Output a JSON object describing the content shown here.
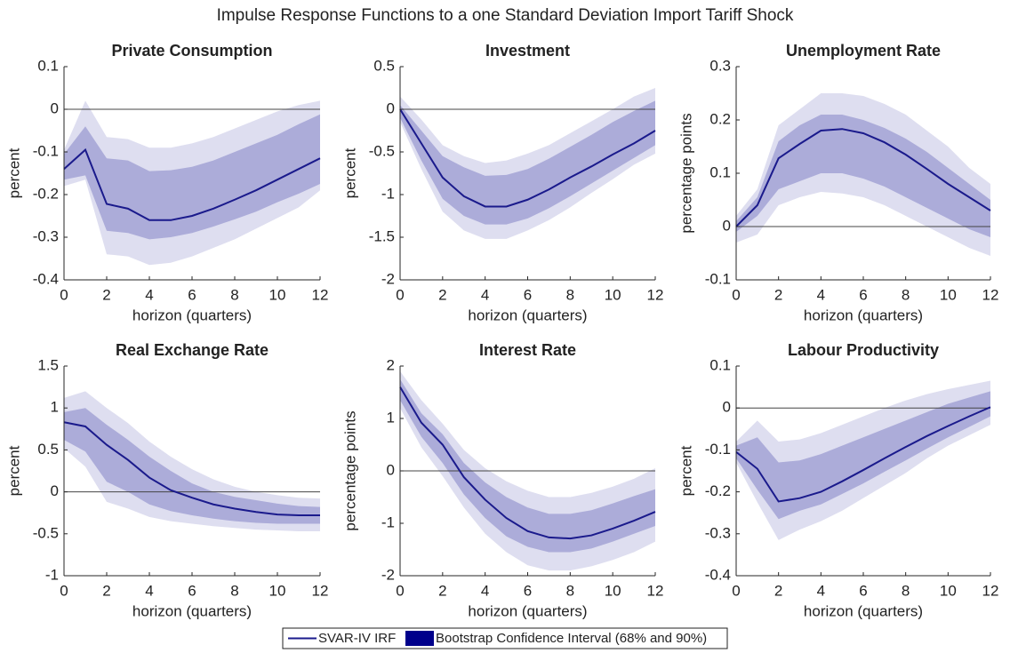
{
  "title": "Impulse Response Functions to a one Standard Deviation Import Tariff Shock",
  "legend": [
    {
      "name": "SVAR-IV IRF",
      "color": "#1a1a8c"
    },
    {
      "name": "Bootstrap Confidence Interval (68% and 90%)",
      "color": "#00008b"
    }
  ],
  "chart_data": [
    {
      "type": "line",
      "title": "Private Consumption",
      "ylabel": "percent",
      "xlabel": "horizon (quarters)",
      "x": [
        0,
        1,
        2,
        3,
        4,
        5,
        6,
        7,
        8,
        9,
        10,
        11,
        12
      ],
      "xlim": [
        0,
        12
      ],
      "xticks": [
        0,
        2,
        4,
        6,
        8,
        10,
        12
      ],
      "ylim": [
        -0.4,
        0.1
      ],
      "yticks": [
        -0.4,
        -0.3,
        -0.2,
        -0.1,
        0,
        0.1
      ],
      "hline": 0,
      "line_color": "#1a1a8c",
      "band68_color": "#acacd9",
      "band90_color": "#dedef0",
      "values": [
        -0.14,
        -0.095,
        -0.222,
        -0.233,
        -0.26,
        -0.26,
        -0.25,
        -0.233,
        -0.212,
        -0.19,
        -0.165,
        -0.14,
        -0.115
      ],
      "band68": {
        "lower": [
          -0.165,
          -0.155,
          -0.285,
          -0.29,
          -0.305,
          -0.3,
          -0.29,
          -0.275,
          -0.258,
          -0.24,
          -0.218,
          -0.198,
          -0.175
        ],
        "upper": [
          -0.105,
          -0.04,
          -0.115,
          -0.12,
          -0.145,
          -0.143,
          -0.135,
          -0.12,
          -0.1,
          -0.08,
          -0.06,
          -0.035,
          -0.012
        ]
      },
      "band90": {
        "lower": [
          -0.18,
          -0.165,
          -0.34,
          -0.345,
          -0.365,
          -0.36,
          -0.345,
          -0.325,
          -0.305,
          -0.28,
          -0.255,
          -0.23,
          -0.19
        ],
        "upper": [
          -0.095,
          0.02,
          -0.065,
          -0.07,
          -0.09,
          -0.09,
          -0.08,
          -0.065,
          -0.045,
          -0.025,
          -0.005,
          0.01,
          0.02
        ]
      }
    },
    {
      "type": "line",
      "title": "Investment",
      "ylabel": "percent",
      "xlabel": "horizon (quarters)",
      "x": [
        0,
        1,
        2,
        3,
        4,
        5,
        6,
        7,
        8,
        9,
        10,
        11,
        12
      ],
      "xlim": [
        0,
        12
      ],
      "xticks": [
        0,
        2,
        4,
        6,
        8,
        10,
        12
      ],
      "ylim": [
        -2,
        0.5
      ],
      "yticks": [
        -2,
        -1.5,
        -1,
        -0.5,
        0,
        0.5
      ],
      "hline": 0,
      "line_color": "#1a1a8c",
      "band68_color": "#acacd9",
      "band90_color": "#dedef0",
      "values": [
        0,
        -0.4,
        -0.8,
        -1.02,
        -1.14,
        -1.14,
        -1.06,
        -0.94,
        -0.8,
        -0.67,
        -0.53,
        -0.4,
        -0.25
      ],
      "band68": {
        "lower": [
          -0.1,
          -0.6,
          -1.05,
          -1.25,
          -1.35,
          -1.35,
          -1.28,
          -1.16,
          -1.02,
          -0.87,
          -0.72,
          -0.57,
          -0.42
        ],
        "upper": [
          0.05,
          -0.25,
          -0.55,
          -0.68,
          -0.78,
          -0.77,
          -0.7,
          -0.58,
          -0.44,
          -0.3,
          -0.15,
          -0.02,
          0.1
        ]
      },
      "band90": {
        "lower": [
          -0.15,
          -0.7,
          -1.2,
          -1.42,
          -1.52,
          -1.52,
          -1.42,
          -1.3,
          -1.15,
          -0.98,
          -0.82,
          -0.65,
          -0.52
        ],
        "upper": [
          0.15,
          -0.12,
          -0.42,
          -0.55,
          -0.63,
          -0.6,
          -0.52,
          -0.42,
          -0.28,
          -0.14,
          0,
          0.15,
          0.25
        ]
      }
    },
    {
      "type": "line",
      "title": "Unemployment Rate",
      "ylabel": "percentage points",
      "xlabel": "horizon (quarters)",
      "x": [
        0,
        1,
        2,
        3,
        4,
        5,
        6,
        7,
        8,
        9,
        10,
        11,
        12
      ],
      "xlim": [
        0,
        12
      ],
      "xticks": [
        0,
        2,
        4,
        6,
        8,
        10,
        12
      ],
      "ylim": [
        -0.1,
        0.3
      ],
      "yticks": [
        -0.1,
        0,
        0.1,
        0.2,
        0.3
      ],
      "hline": 0,
      "line_color": "#1a1a8c",
      "band68_color": "#acacd9",
      "band90_color": "#dedef0",
      "values": [
        0,
        0.04,
        0.128,
        0.155,
        0.18,
        0.183,
        0.175,
        0.158,
        0.135,
        0.108,
        0.08,
        0.055,
        0.03
      ],
      "band68": {
        "lower": [
          -0.01,
          0.02,
          0.07,
          0.085,
          0.1,
          0.1,
          0.09,
          0.075,
          0.055,
          0.035,
          0.015,
          -0.005,
          -0.02
        ],
        "upper": [
          0.01,
          0.055,
          0.16,
          0.19,
          0.21,
          0.21,
          0.2,
          0.185,
          0.165,
          0.14,
          0.11,
          0.08,
          0.05
        ]
      },
      "band90": {
        "lower": [
          -0.03,
          -0.015,
          0.04,
          0.055,
          0.065,
          0.062,
          0.055,
          0.04,
          0.02,
          0,
          -0.02,
          -0.04,
          -0.055
        ],
        "upper": [
          0.02,
          0.07,
          0.19,
          0.22,
          0.25,
          0.25,
          0.245,
          0.23,
          0.21,
          0.18,
          0.15,
          0.11,
          0.08
        ]
      }
    },
    {
      "type": "line",
      "title": "Real Exchange Rate",
      "ylabel": "percent",
      "xlabel": "horizon (quarters)",
      "x": [
        0,
        1,
        2,
        3,
        4,
        5,
        6,
        7,
        8,
        9,
        10,
        11,
        12
      ],
      "xlim": [
        0,
        12
      ],
      "xticks": [
        0,
        2,
        4,
        6,
        8,
        10,
        12
      ],
      "ylim": [
        -1,
        1.5
      ],
      "yticks": [
        -1,
        -0.5,
        0,
        0.5,
        1,
        1.5
      ],
      "hline": 0,
      "line_color": "#1a1a8c",
      "band68_color": "#acacd9",
      "band90_color": "#dedef0",
      "values": [
        0.83,
        0.78,
        0.56,
        0.38,
        0.17,
        0.02,
        -0.07,
        -0.15,
        -0.2,
        -0.24,
        -0.27,
        -0.28,
        -0.28
      ],
      "band68": {
        "lower": [
          0.62,
          0.48,
          0.12,
          0,
          -0.15,
          -0.23,
          -0.28,
          -0.32,
          -0.35,
          -0.37,
          -0.38,
          -0.38,
          -0.38
        ],
        "upper": [
          0.95,
          1,
          0.8,
          0.62,
          0.42,
          0.25,
          0.1,
          0,
          -0.06,
          -0.1,
          -0.14,
          -0.17,
          -0.18
        ]
      },
      "band90": {
        "lower": [
          0.52,
          0.3,
          -0.12,
          -0.2,
          -0.3,
          -0.35,
          -0.38,
          -0.41,
          -0.43,
          -0.45,
          -0.46,
          -0.47,
          -0.47
        ],
        "upper": [
          1.12,
          1.2,
          1,
          0.82,
          0.6,
          0.42,
          0.27,
          0.15,
          0.06,
          0,
          -0.04,
          -0.07,
          -0.08
        ]
      }
    },
    {
      "type": "line",
      "title": "Interest Rate",
      "ylabel": "percentage points",
      "xlabel": "horizon (quarters)",
      "x": [
        0,
        1,
        2,
        3,
        4,
        5,
        6,
        7,
        8,
        9,
        10,
        11,
        12
      ],
      "xlim": [
        0,
        12
      ],
      "xticks": [
        0,
        2,
        4,
        6,
        8,
        10,
        12
      ],
      "ylim": [
        -2,
        2
      ],
      "yticks": [
        -2,
        -1,
        0,
        1,
        2
      ],
      "hline": 0,
      "line_color": "#1a1a8c",
      "band68_color": "#acacd9",
      "band90_color": "#dedef0",
      "values": [
        1.6,
        0.92,
        0.5,
        -0.12,
        -0.55,
        -0.9,
        -1.15,
        -1.27,
        -1.29,
        -1.23,
        -1.1,
        -0.95,
        -0.78
      ],
      "band68": {
        "lower": [
          1.35,
          0.65,
          0.15,
          -0.45,
          -0.9,
          -1.25,
          -1.45,
          -1.55,
          -1.55,
          -1.48,
          -1.35,
          -1.2,
          -1.05
        ],
        "upper": [
          1.75,
          1.1,
          0.7,
          0.15,
          -0.22,
          -0.5,
          -0.7,
          -0.82,
          -0.82,
          -0.75,
          -0.62,
          -0.48,
          -0.35
        ]
      },
      "band90": {
        "lower": [
          1.2,
          0.45,
          -0.1,
          -0.7,
          -1.2,
          -1.55,
          -1.8,
          -1.9,
          -1.9,
          -1.82,
          -1.7,
          -1.55,
          -1.35
        ],
        "upper": [
          1.9,
          1.35,
          0.9,
          0.4,
          0.05,
          -0.2,
          -0.38,
          -0.5,
          -0.5,
          -0.42,
          -0.3,
          -0.15,
          0.05
        ]
      }
    },
    {
      "type": "line",
      "title": "Labour Productivity",
      "ylabel": "percent",
      "xlabel": "horizon (quarters)",
      "x": [
        0,
        1,
        2,
        3,
        4,
        5,
        6,
        7,
        8,
        9,
        10,
        11,
        12
      ],
      "xlim": [
        0,
        12
      ],
      "xticks": [
        0,
        2,
        4,
        6,
        8,
        10,
        12
      ],
      "ylim": [
        -0.4,
        0.1
      ],
      "yticks": [
        -0.4,
        -0.3,
        -0.2,
        -0.1,
        0,
        0.1
      ],
      "hline": 0,
      "line_color": "#1a1a8c",
      "band68_color": "#acacd9",
      "band90_color": "#dedef0",
      "values": [
        -0.105,
        -0.145,
        -0.223,
        -0.215,
        -0.2,
        -0.175,
        -0.148,
        -0.12,
        -0.093,
        -0.067,
        -0.043,
        -0.02,
        0.002
      ],
      "band68": {
        "lower": [
          -0.12,
          -0.195,
          -0.265,
          -0.245,
          -0.23,
          -0.205,
          -0.18,
          -0.152,
          -0.125,
          -0.097,
          -0.07,
          -0.045,
          -0.02
        ],
        "upper": [
          -0.09,
          -0.07,
          -0.13,
          -0.125,
          -0.11,
          -0.09,
          -0.07,
          -0.05,
          -0.03,
          -0.01,
          0.01,
          0.025,
          0.04
        ]
      },
      "band90": {
        "lower": [
          -0.13,
          -0.225,
          -0.315,
          -0.29,
          -0.27,
          -0.245,
          -0.215,
          -0.185,
          -0.155,
          -0.12,
          -0.09,
          -0.065,
          -0.04
        ],
        "upper": [
          -0.08,
          -0.03,
          -0.08,
          -0.075,
          -0.06,
          -0.04,
          -0.02,
          0,
          0.018,
          0.033,
          0.045,
          0.055,
          0.065
        ]
      }
    }
  ]
}
